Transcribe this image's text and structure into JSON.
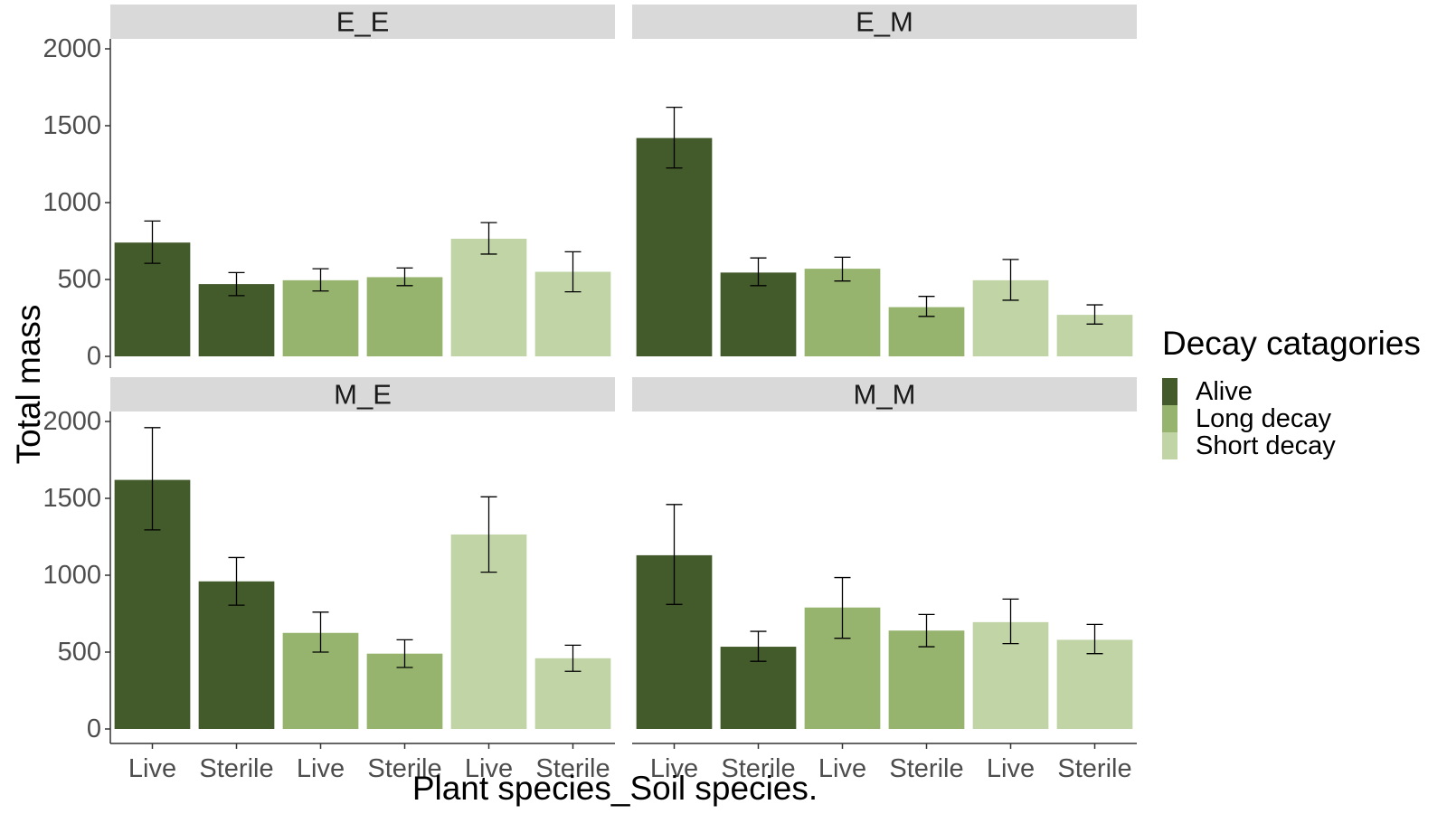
{
  "chart_data": {
    "type": "bar",
    "xlabel": "Plant species_Soil species.",
    "ylabel": "Total mass",
    "ylim": [
      0,
      2000
    ],
    "yticks": [
      0,
      500,
      1000,
      1500,
      2000
    ],
    "grid": false,
    "legend": {
      "title": "Decay catagories",
      "placement": "right",
      "items": [
        {
          "label": "Alive",
          "color": "#435a2b"
        },
        {
          "label": "Long decay",
          "color": "#96b46e"
        },
        {
          "label": "Short decay",
          "color": "#c0d4a6"
        }
      ]
    },
    "categories": [
      "Live",
      "Sterile",
      "Live",
      "Sterile",
      "Live",
      "Sterile"
    ],
    "category_groups": [
      "Alive",
      "Alive",
      "Long decay",
      "Long decay",
      "Short decay",
      "Short decay"
    ],
    "panels": [
      {
        "label": "E_E",
        "values": [
          740,
          470,
          495,
          515,
          765,
          550
        ],
        "errors": [
          [
            605,
            880
          ],
          [
            395,
            545
          ],
          [
            425,
            570
          ],
          [
            460,
            575
          ],
          [
            665,
            870
          ],
          [
            420,
            680
          ]
        ]
      },
      {
        "label": "E_M",
        "values": [
          1420,
          545,
          570,
          320,
          495,
          270
        ],
        "errors": [
          [
            1225,
            1620
          ],
          [
            460,
            640
          ],
          [
            490,
            645
          ],
          [
            260,
            390
          ],
          [
            365,
            630
          ],
          [
            210,
            335
          ]
        ]
      },
      {
        "label": "M_E",
        "values": [
          1620,
          960,
          625,
          490,
          1265,
          460
        ],
        "errors": [
          [
            1295,
            1960
          ],
          [
            805,
            1115
          ],
          [
            500,
            760
          ],
          [
            400,
            580
          ],
          [
            1020,
            1510
          ],
          [
            375,
            545
          ]
        ]
      },
      {
        "label": "M_M",
        "values": [
          1130,
          535,
          790,
          640,
          695,
          580
        ],
        "errors": [
          [
            810,
            1460
          ],
          [
            440,
            635
          ],
          [
            590,
            985
          ],
          [
            535,
            745
          ],
          [
            555,
            845
          ],
          [
            490,
            680
          ]
        ]
      }
    ]
  }
}
